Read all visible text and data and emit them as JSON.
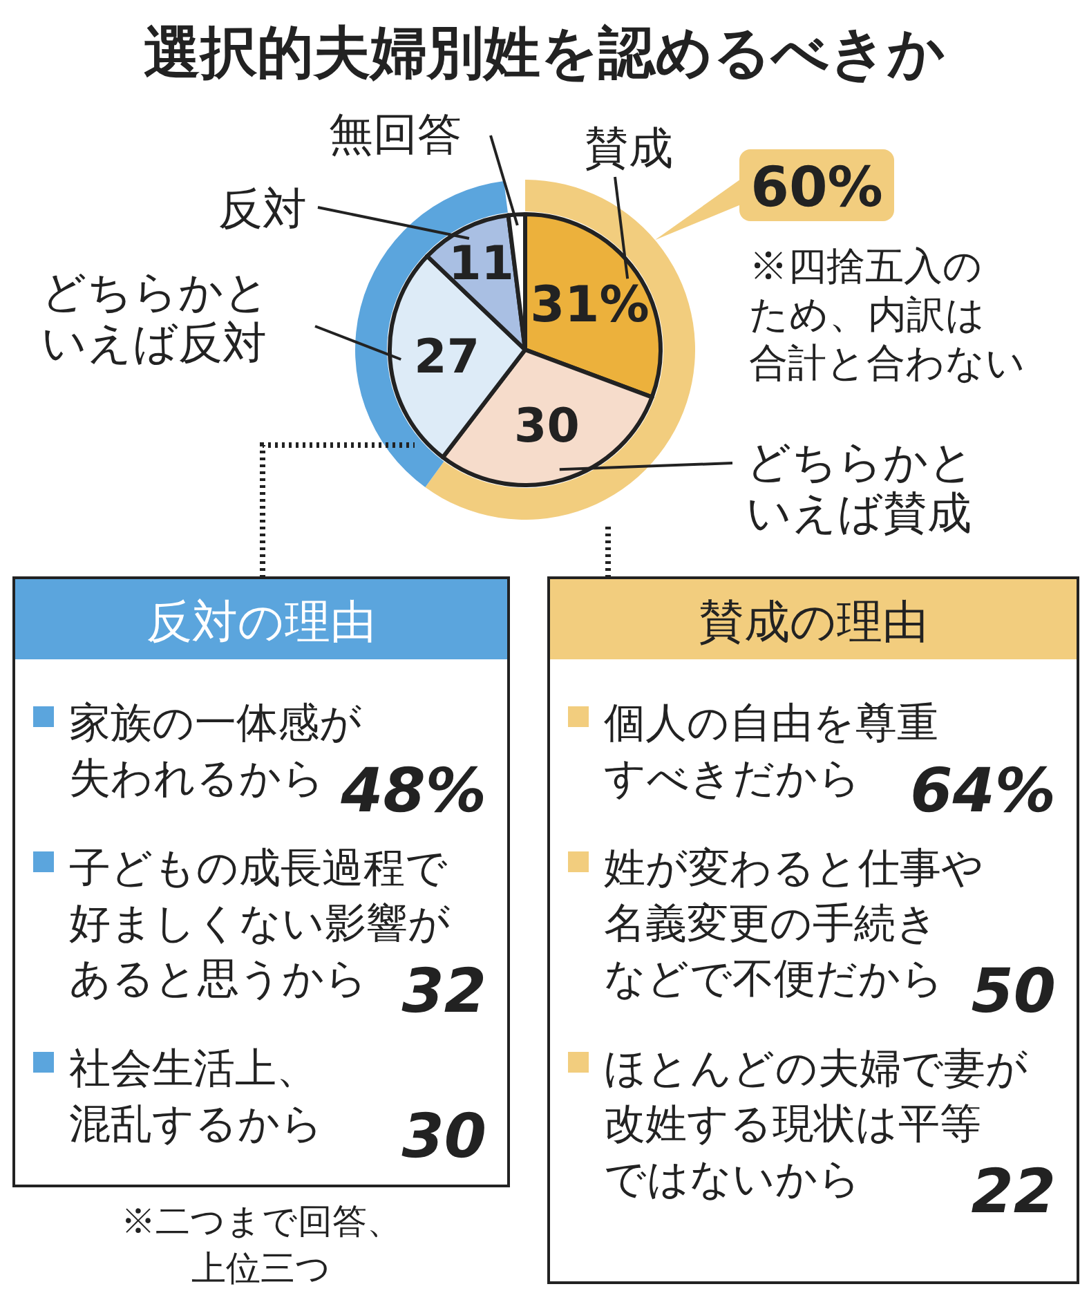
{
  "chart_data": [
    {
      "type": "pie",
      "title": "選択的夫婦別姓を認めるべきか",
      "categories": [
        "賛成",
        "どちらかといえば賛成",
        "どちらかといえば反対",
        "反対",
        "無回答"
      ],
      "values": [
        31,
        30,
        27,
        11,
        2
      ],
      "colors": [
        "#ecb13c",
        "#f6dccb",
        "#ddebf7",
        "#a9bfe3",
        "#ffffff"
      ],
      "value_labels": [
        "31%",
        "30",
        "27",
        "11",
        null
      ],
      "annotations": [
        "※四捨五入のため、内訳は合計と合わない"
      ]
    },
    {
      "type": "donut",
      "categories": [
        null,
        null
      ],
      "values": [
        60,
        38
      ],
      "colors": [
        "#f2cd7e",
        "#5ba5dd"
      ],
      "value_labels": [
        "60%",
        null
      ]
    },
    {
      "type": "other",
      "title": "反対の理由",
      "color": "#5ba5dd",
      "categories": [
        "家族の一体感が失われるから",
        "子どもの成長過程で好ましくない影響があると思うから",
        "社会生活上、混乱するから"
      ],
      "values": [
        48,
        32,
        30
      ],
      "value_labels": [
        "48%",
        "32",
        "30"
      ],
      "annotations": [
        "※二つまで回答、上位三つ"
      ]
    },
    {
      "type": "other",
      "title": "賛成の理由",
      "color": "#f2cd7e",
      "categories": [
        "個人の自由を尊重すべきだから",
        "姓が変わると仕事や名義変更の手続きなどで不便だから",
        "ほとんどの夫婦で妻が改姓する現状は平等ではないから"
      ],
      "values": [
        64,
        50,
        22
      ],
      "value_labels": [
        "64%",
        "50",
        "22"
      ]
    }
  ]
}
